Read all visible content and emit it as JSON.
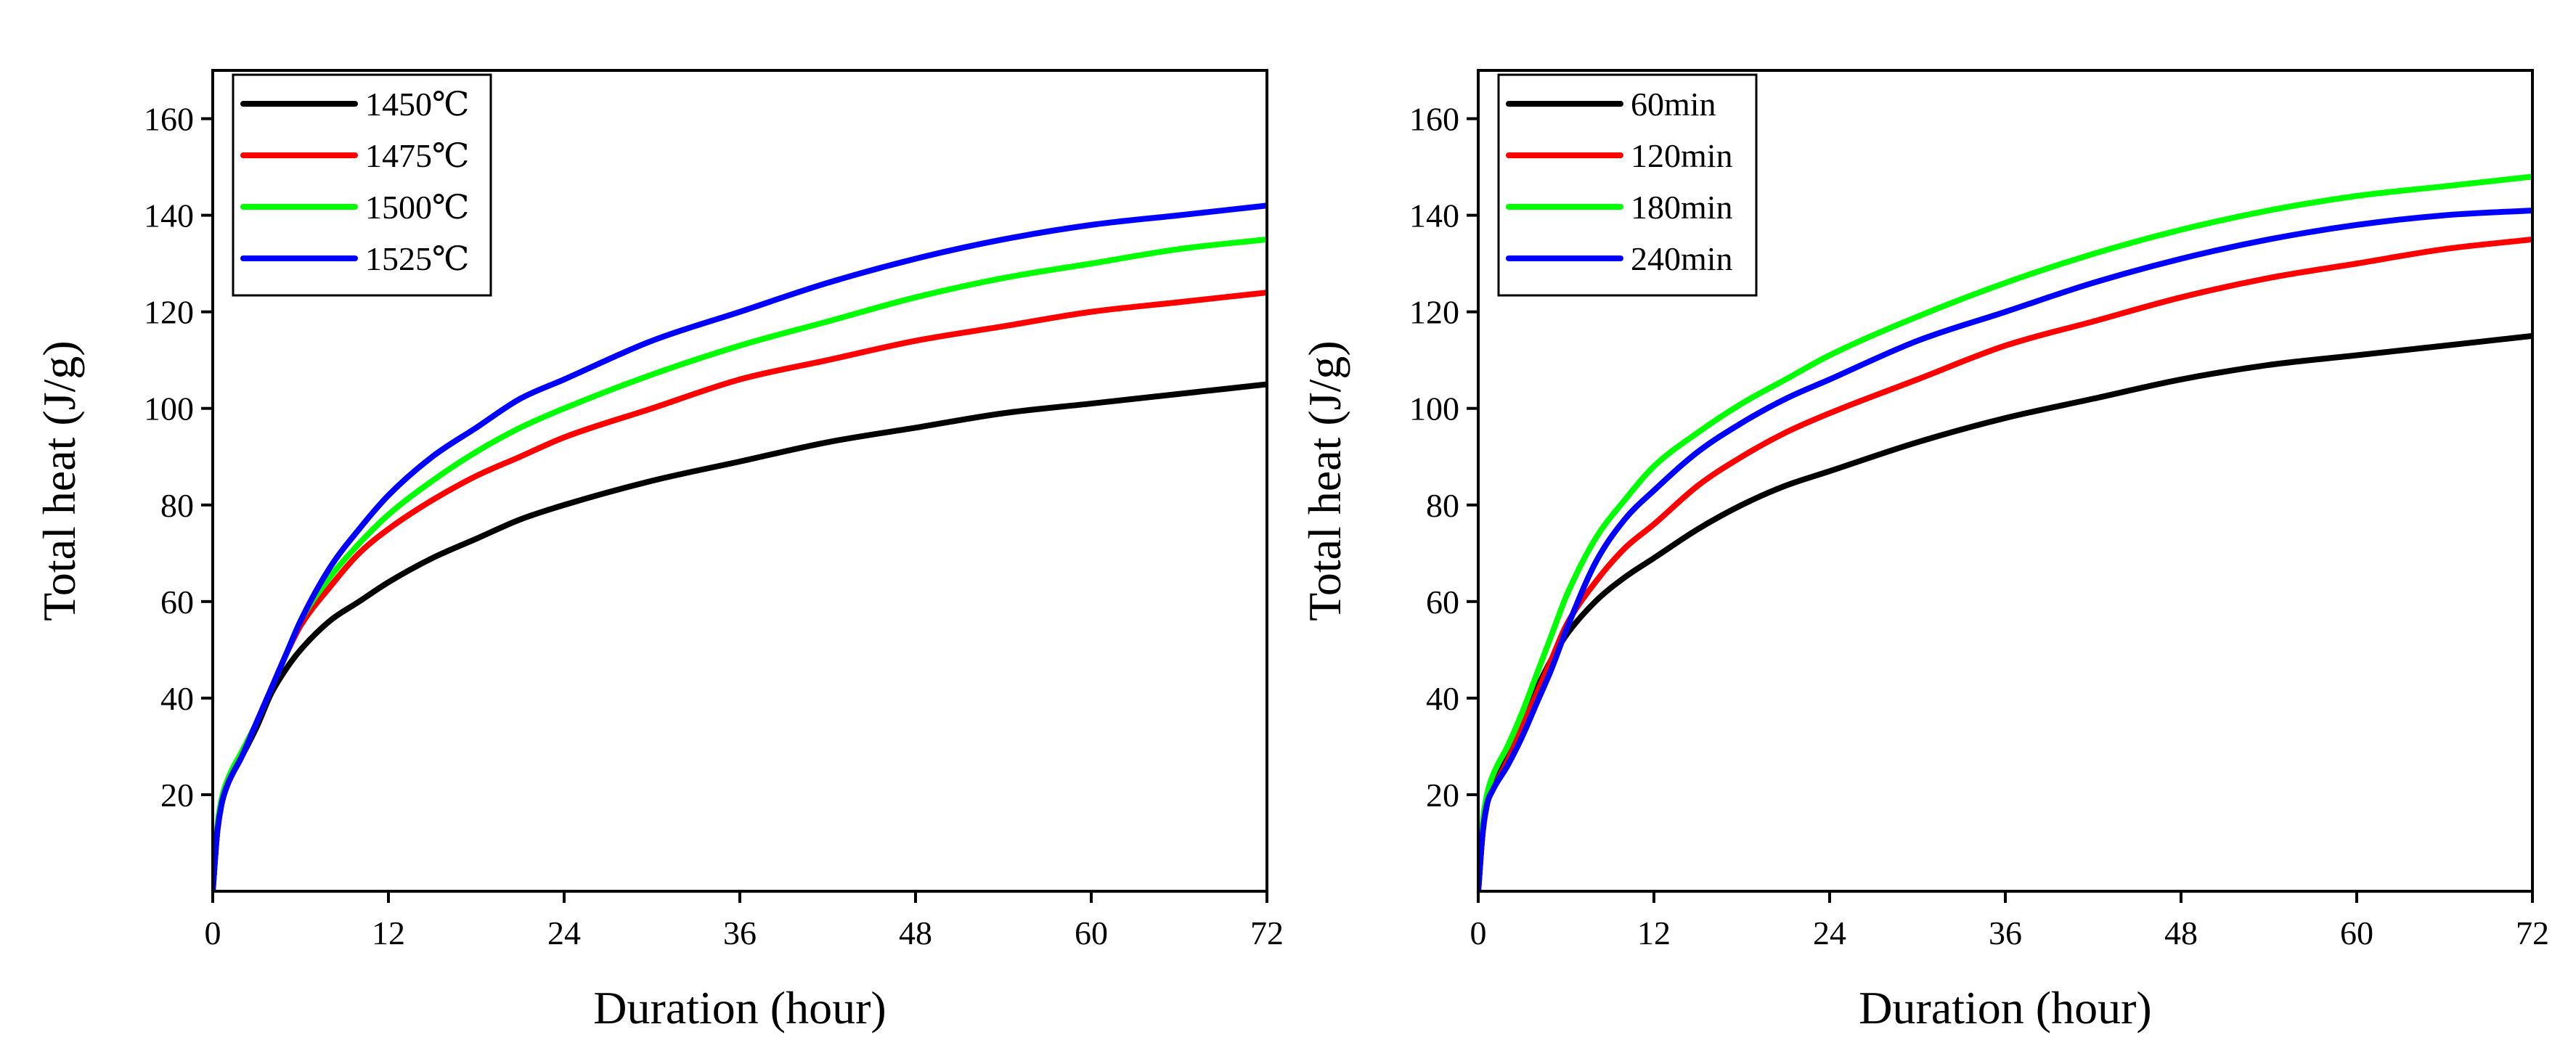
{
  "chart_data": [
    {
      "type": "line",
      "xlabel": "Duration (hour)",
      "ylabel": "Total heat (J/g)",
      "xlim": [
        0,
        72
      ],
      "ylim": [
        0,
        170
      ],
      "xticks": [
        0,
        12,
        24,
        36,
        48,
        60,
        72
      ],
      "yticks": [
        20,
        40,
        60,
        80,
        100,
        120,
        140,
        160
      ],
      "grid": false,
      "legend": "top-left",
      "series": [
        {
          "name": "1450℃",
          "color": "#000000",
          "x": [
            0,
            0.3,
            0.6,
            1,
            2,
            3,
            4,
            5,
            6,
            8,
            10,
            12,
            15,
            18,
            21,
            24,
            30,
            36,
            42,
            48,
            54,
            60,
            66,
            72
          ],
          "y": [
            0,
            12,
            18,
            22,
            28,
            34,
            41,
            46,
            50,
            56,
            60,
            64,
            69,
            73,
            77,
            80,
            85,
            89,
            93,
            96,
            99,
            101,
            103,
            105
          ]
        },
        {
          "name": "1475℃",
          "color": "#ff0000",
          "x": [
            0,
            0.3,
            0.6,
            1,
            2,
            3,
            4,
            5,
            6,
            8,
            10,
            12,
            15,
            18,
            21,
            24,
            30,
            36,
            42,
            48,
            54,
            60,
            66,
            72
          ],
          "y": [
            0,
            12,
            18,
            22,
            28,
            35,
            42,
            49,
            55,
            63,
            70,
            75,
            81,
            86,
            90,
            94,
            100,
            106,
            110,
            114,
            117,
            120,
            122,
            124
          ]
        },
        {
          "name": "1500℃",
          "color": "#00ff00",
          "x": [
            0,
            0.3,
            0.6,
            1,
            2,
            3,
            4,
            5,
            6,
            8,
            10,
            12,
            15,
            18,
            21,
            24,
            30,
            36,
            42,
            48,
            54,
            60,
            66,
            72
          ],
          "y": [
            0,
            13,
            19,
            23,
            29,
            35,
            42,
            49,
            56,
            65,
            72,
            78,
            85,
            91,
            96,
            100,
            107,
            113,
            118,
            123,
            127,
            130,
            133,
            135
          ]
        },
        {
          "name": "1525℃",
          "color": "#0000ff",
          "x": [
            0,
            0.3,
            0.6,
            1,
            2,
            3,
            4,
            5,
            6,
            8,
            10,
            12,
            15,
            18,
            21,
            24,
            30,
            36,
            42,
            48,
            54,
            60,
            66,
            72
          ],
          "y": [
            0,
            12,
            18,
            22,
            28,
            35,
            42,
            49,
            56,
            67,
            75,
            82,
            90,
            96,
            102,
            106,
            114,
            120,
            126,
            131,
            135,
            138,
            140,
            142
          ]
        }
      ]
    },
    {
      "type": "line",
      "xlabel": "Duration (hour)",
      "ylabel": "Total heat (J/g)",
      "xlim": [
        0,
        72
      ],
      "ylim": [
        0,
        170
      ],
      "xticks": [
        0,
        12,
        24,
        36,
        48,
        60,
        72
      ],
      "yticks": [
        20,
        40,
        60,
        80,
        100,
        120,
        140,
        160
      ],
      "grid": false,
      "legend": "top-left",
      "series": [
        {
          "name": "60min",
          "color": "#000000",
          "x": [
            0,
            0.3,
            0.6,
            1,
            2,
            3,
            4,
            5,
            6,
            8,
            10,
            12,
            15,
            18,
            21,
            24,
            30,
            36,
            42,
            48,
            54,
            60,
            66,
            72
          ],
          "y": [
            0,
            12,
            18,
            22,
            28,
            35,
            42,
            48,
            53,
            60,
            65,
            69,
            75,
            80,
            84,
            87,
            93,
            98,
            102,
            106,
            109,
            111,
            113,
            115
          ]
        },
        {
          "name": "120min",
          "color": "#ff0000",
          "x": [
            0,
            0.3,
            0.6,
            1,
            2,
            3,
            4,
            5,
            6,
            8,
            10,
            12,
            15,
            18,
            21,
            24,
            30,
            36,
            42,
            48,
            54,
            60,
            66,
            72
          ],
          "y": [
            0,
            12,
            18,
            21,
            27,
            34,
            41,
            48,
            55,
            64,
            71,
            76,
            84,
            90,
            95,
            99,
            106,
            113,
            118,
            123,
            127,
            130,
            133,
            135
          ]
        },
        {
          "name": "180min",
          "color": "#00ff00",
          "x": [
            0,
            0.3,
            0.6,
            1,
            2,
            3,
            4,
            5,
            6,
            8,
            10,
            12,
            15,
            18,
            21,
            24,
            30,
            36,
            42,
            48,
            54,
            60,
            66,
            72
          ],
          "y": [
            0,
            14,
            20,
            24,
            30,
            37,
            45,
            53,
            61,
            73,
            81,
            88,
            95,
            101,
            106,
            111,
            119,
            126,
            132,
            137,
            141,
            144,
            146,
            148
          ]
        },
        {
          "name": "240min",
          "color": "#0000ff",
          "x": [
            0,
            0.3,
            0.6,
            1,
            2,
            3,
            4,
            5,
            6,
            8,
            10,
            12,
            15,
            18,
            21,
            24,
            30,
            36,
            42,
            48,
            54,
            60,
            66,
            72
          ],
          "y": [
            0,
            12,
            18,
            21,
            26,
            32,
            39,
            46,
            54,
            68,
            77,
            83,
            91,
            97,
            102,
            106,
            114,
            120,
            126,
            131,
            135,
            138,
            140,
            141
          ]
        }
      ]
    }
  ]
}
